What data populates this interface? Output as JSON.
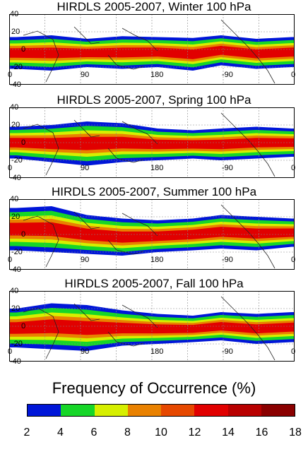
{
  "panels": [
    {
      "title": "HIRDLS 2005-2007, Winter 100 hPa",
      "band": [
        [
          10,
          14,
          -22
        ],
        [
          60,
          16,
          -24
        ],
        [
          110,
          12,
          -20
        ],
        [
          160,
          15,
          -22
        ],
        [
          210,
          14,
          -20
        ],
        [
          260,
          13,
          -24
        ],
        [
          300,
          16,
          -18
        ],
        [
          350,
          12,
          -22
        ],
        [
          400,
          14,
          -20
        ]
      ]
    },
    {
      "title": "HIRDLS 2005-2007, Spring 100 hPa",
      "band": [
        [
          10,
          18,
          -18
        ],
        [
          60,
          20,
          -22
        ],
        [
          110,
          24,
          -26
        ],
        [
          160,
          22,
          -22
        ],
        [
          210,
          16,
          -20
        ],
        [
          260,
          14,
          -18
        ],
        [
          300,
          16,
          -20
        ],
        [
          350,
          18,
          -18
        ],
        [
          400,
          16,
          -16
        ]
      ]
    },
    {
      "title": "HIRDLS 2005-2007, Summer 100 hPa",
      "band": [
        [
          10,
          30,
          -18
        ],
        [
          60,
          32,
          -20
        ],
        [
          110,
          22,
          -22
        ],
        [
          160,
          18,
          -24
        ],
        [
          210,
          16,
          -20
        ],
        [
          260,
          18,
          -18
        ],
        [
          300,
          22,
          -16
        ],
        [
          350,
          20,
          -18
        ],
        [
          400,
          18,
          -14
        ]
      ]
    },
    {
      "title": "HIRDLS 2005-2007, Fall 100 hPa",
      "band": [
        [
          10,
          20,
          -24
        ],
        [
          60,
          26,
          -26
        ],
        [
          110,
          24,
          -28
        ],
        [
          160,
          18,
          -22
        ],
        [
          210,
          14,
          -20
        ],
        [
          260,
          12,
          -18
        ],
        [
          300,
          16,
          -16
        ],
        [
          350,
          14,
          -20
        ],
        [
          400,
          16,
          -18
        ]
      ]
    }
  ],
  "lat_labels": [
    "40",
    "20",
    "0",
    "-20",
    "-40"
  ],
  "lon_labels": [
    "0",
    "90",
    "180",
    "-90",
    "0"
  ],
  "colorbar": {
    "title": "Frequency of Occurrence (%)",
    "ticks": [
      "2",
      "4",
      "6",
      "8",
      "10",
      "12",
      "14",
      "16",
      "18"
    ],
    "colors": [
      "#0016d8",
      "#16d628",
      "#d6ef00",
      "#e98100",
      "#e64800",
      "#e10000",
      "#b80000",
      "#8a0000"
    ]
  }
}
